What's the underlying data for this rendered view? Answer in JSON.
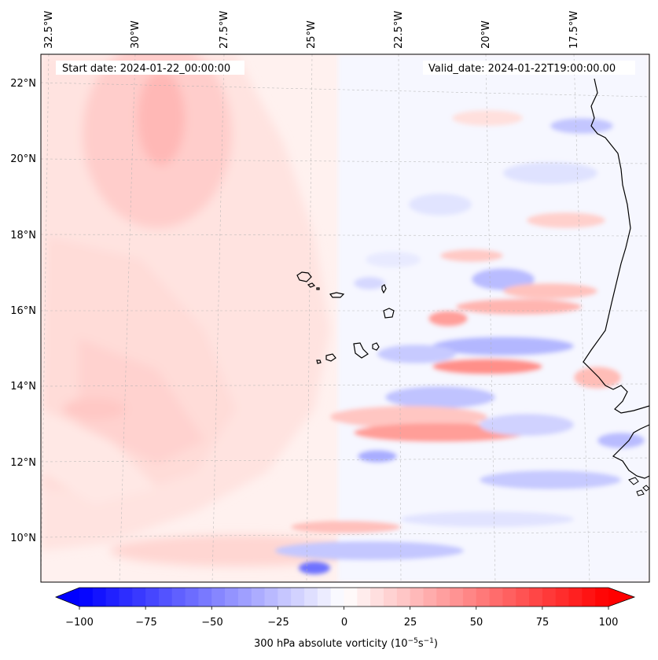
{
  "header": {
    "start_date": "Start date: 2024-01-22_00:00:00",
    "valid_date": "Valid_date: 2024-01-22T19:00:00.00"
  },
  "map": {
    "lon_labels": [
      "32.5°W",
      "30°W",
      "27.5°W",
      "25°W",
      "22.5°W",
      "20°W",
      "17.5°W"
    ],
    "lat_labels": [
      "22°N",
      "20°N",
      "18°N",
      "16°N",
      "14°N",
      "12°N",
      "10°N"
    ]
  },
  "colorbar": {
    "ticks": [
      "−100",
      "−75",
      "−50",
      "−25",
      "0",
      "25",
      "50",
      "75",
      "100"
    ],
    "label_text": "300 hPa absolute vorticity (10",
    "label_exp1": "−5",
    "label_mid": "s",
    "label_exp2": "−1",
    "label_close": ")",
    "colors": {
      "min": "#0000ff",
      "mid": "#ffffff",
      "max": "#ff0000"
    }
  }
}
